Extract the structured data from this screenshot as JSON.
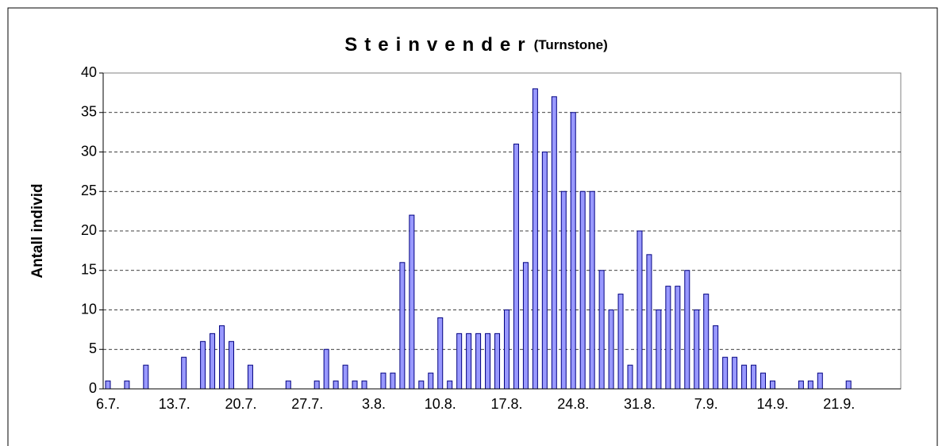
{
  "chart_data": {
    "type": "bar",
    "title": "Steinvender",
    "subtitle": "(Turnstone)",
    "y_label": "Antall individ",
    "categories": [
      "6.7.",
      null,
      null,
      null,
      null,
      null,
      null,
      "13.7.",
      null,
      null,
      null,
      null,
      null,
      null,
      "20.7.",
      null,
      null,
      null,
      null,
      null,
      null,
      "27.7.",
      null,
      null,
      null,
      null,
      null,
      null,
      "3.8.",
      null,
      null,
      null,
      null,
      null,
      null,
      "10.8.",
      null,
      null,
      null,
      null,
      null,
      null,
      "17.8.",
      null,
      null,
      null,
      null,
      null,
      null,
      "24.8.",
      null,
      null,
      null,
      null,
      null,
      null,
      "31.8.",
      null,
      null,
      null,
      null,
      null,
      null,
      "7.9.",
      null,
      null,
      null,
      null,
      null,
      null,
      "14.9.",
      null,
      null,
      null,
      null,
      null,
      null,
      "21.9.",
      null,
      null,
      null,
      null,
      null,
      null
    ],
    "values": [
      1,
      0,
      1,
      0,
      3,
      0,
      0,
      0,
      4,
      0,
      6,
      7,
      8,
      6,
      0,
      3,
      0,
      0,
      0,
      1,
      0,
      0,
      1,
      5,
      1,
      3,
      1,
      1,
      0,
      2,
      2,
      16,
      22,
      1,
      2,
      9,
      1,
      7,
      7,
      7,
      7,
      7,
      10,
      31,
      16,
      38,
      30,
      37,
      25,
      35,
      25,
      25,
      15,
      10,
      12,
      3,
      20,
      17,
      10,
      13,
      13,
      15,
      10,
      12,
      8,
      4,
      4,
      3,
      3,
      2,
      1,
      0,
      0,
      1,
      1,
      2,
      0,
      0,
      1,
      0,
      0,
      0,
      0,
      0
    ],
    "color": "#9999ff",
    "edge_color": "#000080",
    "ylim": [
      0,
      40
    ],
    "yticks": [
      0,
      5,
      10,
      15,
      20,
      25,
      30,
      35,
      40
    ],
    "grid": true
  }
}
